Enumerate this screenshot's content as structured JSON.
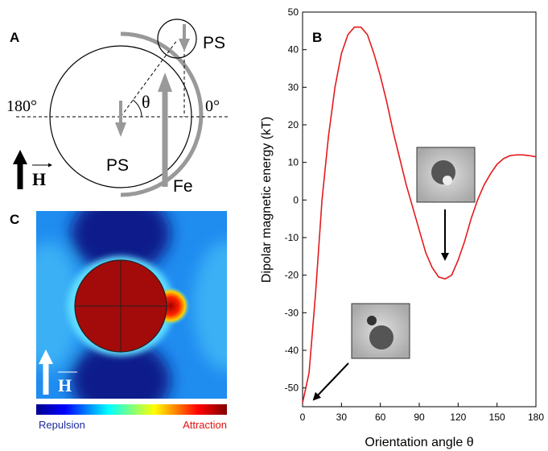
{
  "panels": {
    "a": {
      "label": "A",
      "ps_large": "PS",
      "ps_small": "PS",
      "fe": "Fe",
      "left_angle": "180°",
      "right_angle": "0°",
      "theta": "θ",
      "field": "H"
    },
    "c": {
      "label": "C",
      "field": "H",
      "low": "Repulsion",
      "high": "Attraction"
    }
  },
  "chart_data": {
    "type": "line",
    "panel_label": "B",
    "x_label": "Orientation angle θ",
    "y_label": "Dipolar magnetic energy (kT)",
    "x": [
      0,
      5,
      10,
      15,
      20,
      25,
      30,
      35,
      40,
      45,
      50,
      55,
      60,
      65,
      70,
      75,
      80,
      85,
      90,
      95,
      100,
      105,
      110,
      115,
      120,
      125,
      130,
      135,
      140,
      145,
      150,
      155,
      160,
      165,
      170,
      175,
      180
    ],
    "series": [
      {
        "color": "#e41a1c",
        "values": [
          -54,
          -46,
          -25,
          0,
          17,
          30,
          39,
          44,
          46,
          46,
          44,
          39,
          33,
          26,
          18,
          11,
          4,
          -2,
          -8,
          -14,
          -18,
          -20.5,
          -21,
          -20,
          -16,
          -11,
          -5,
          0,
          4,
          7,
          9.5,
          11,
          11.8,
          12,
          12,
          11.8,
          11.5
        ]
      }
    ],
    "xlim": [
      0,
      180
    ],
    "xticks": [
      0,
      30,
      60,
      90,
      120,
      150,
      180
    ],
    "ylim": [
      -55,
      50
    ],
    "yticks": [
      -50,
      -40,
      -30,
      -20,
      -10,
      0,
      10,
      20,
      30,
      40,
      50
    ]
  }
}
